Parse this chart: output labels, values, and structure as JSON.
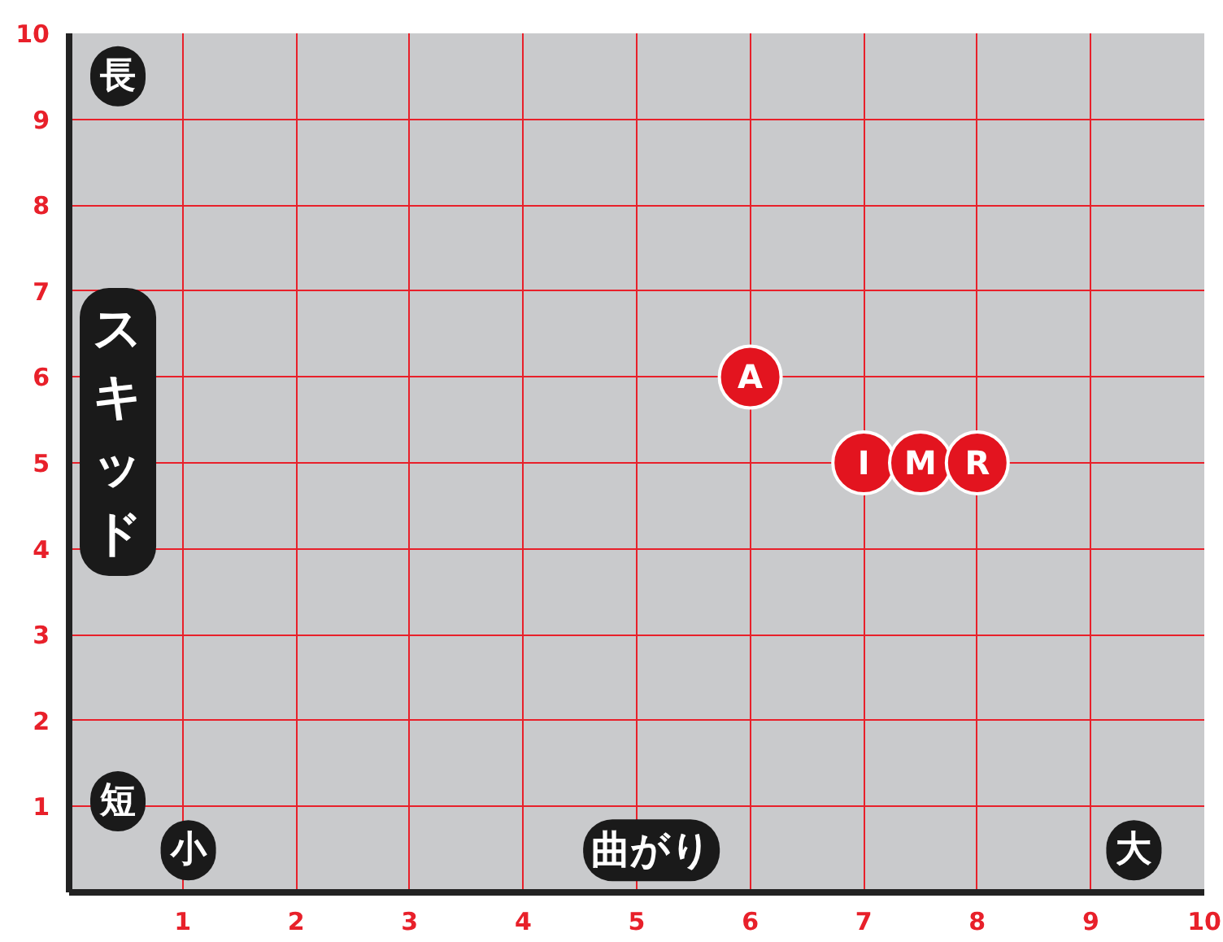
{
  "chart_data": {
    "type": "scatter",
    "xlabel": "曲がり",
    "ylabel": "スキッド",
    "x": [
      6,
      7,
      7.5,
      8
    ],
    "values": [
      6,
      5,
      5,
      5
    ],
    "color": "#e3141f",
    "marker": "circle",
    "xlim": [
      0,
      10
    ],
    "ylim": [
      0,
      10
    ],
    "xticks": [
      1,
      2,
      3,
      4,
      5,
      6,
      7,
      8,
      9,
      10
    ],
    "yticks": [
      1,
      2,
      3,
      4,
      5,
      6,
      7,
      8,
      9,
      10
    ],
    "grid": true,
    "annotations": [
      {
        "text": "A",
        "x": 6,
        "y": 6
      },
      {
        "text": "I",
        "x": 7,
        "y": 5
      },
      {
        "text": "M",
        "x": 7.5,
        "y": 5
      },
      {
        "text": "R",
        "x": 8,
        "y": 5
      },
      "長",
      "短",
      "小",
      "大"
    ]
  }
}
